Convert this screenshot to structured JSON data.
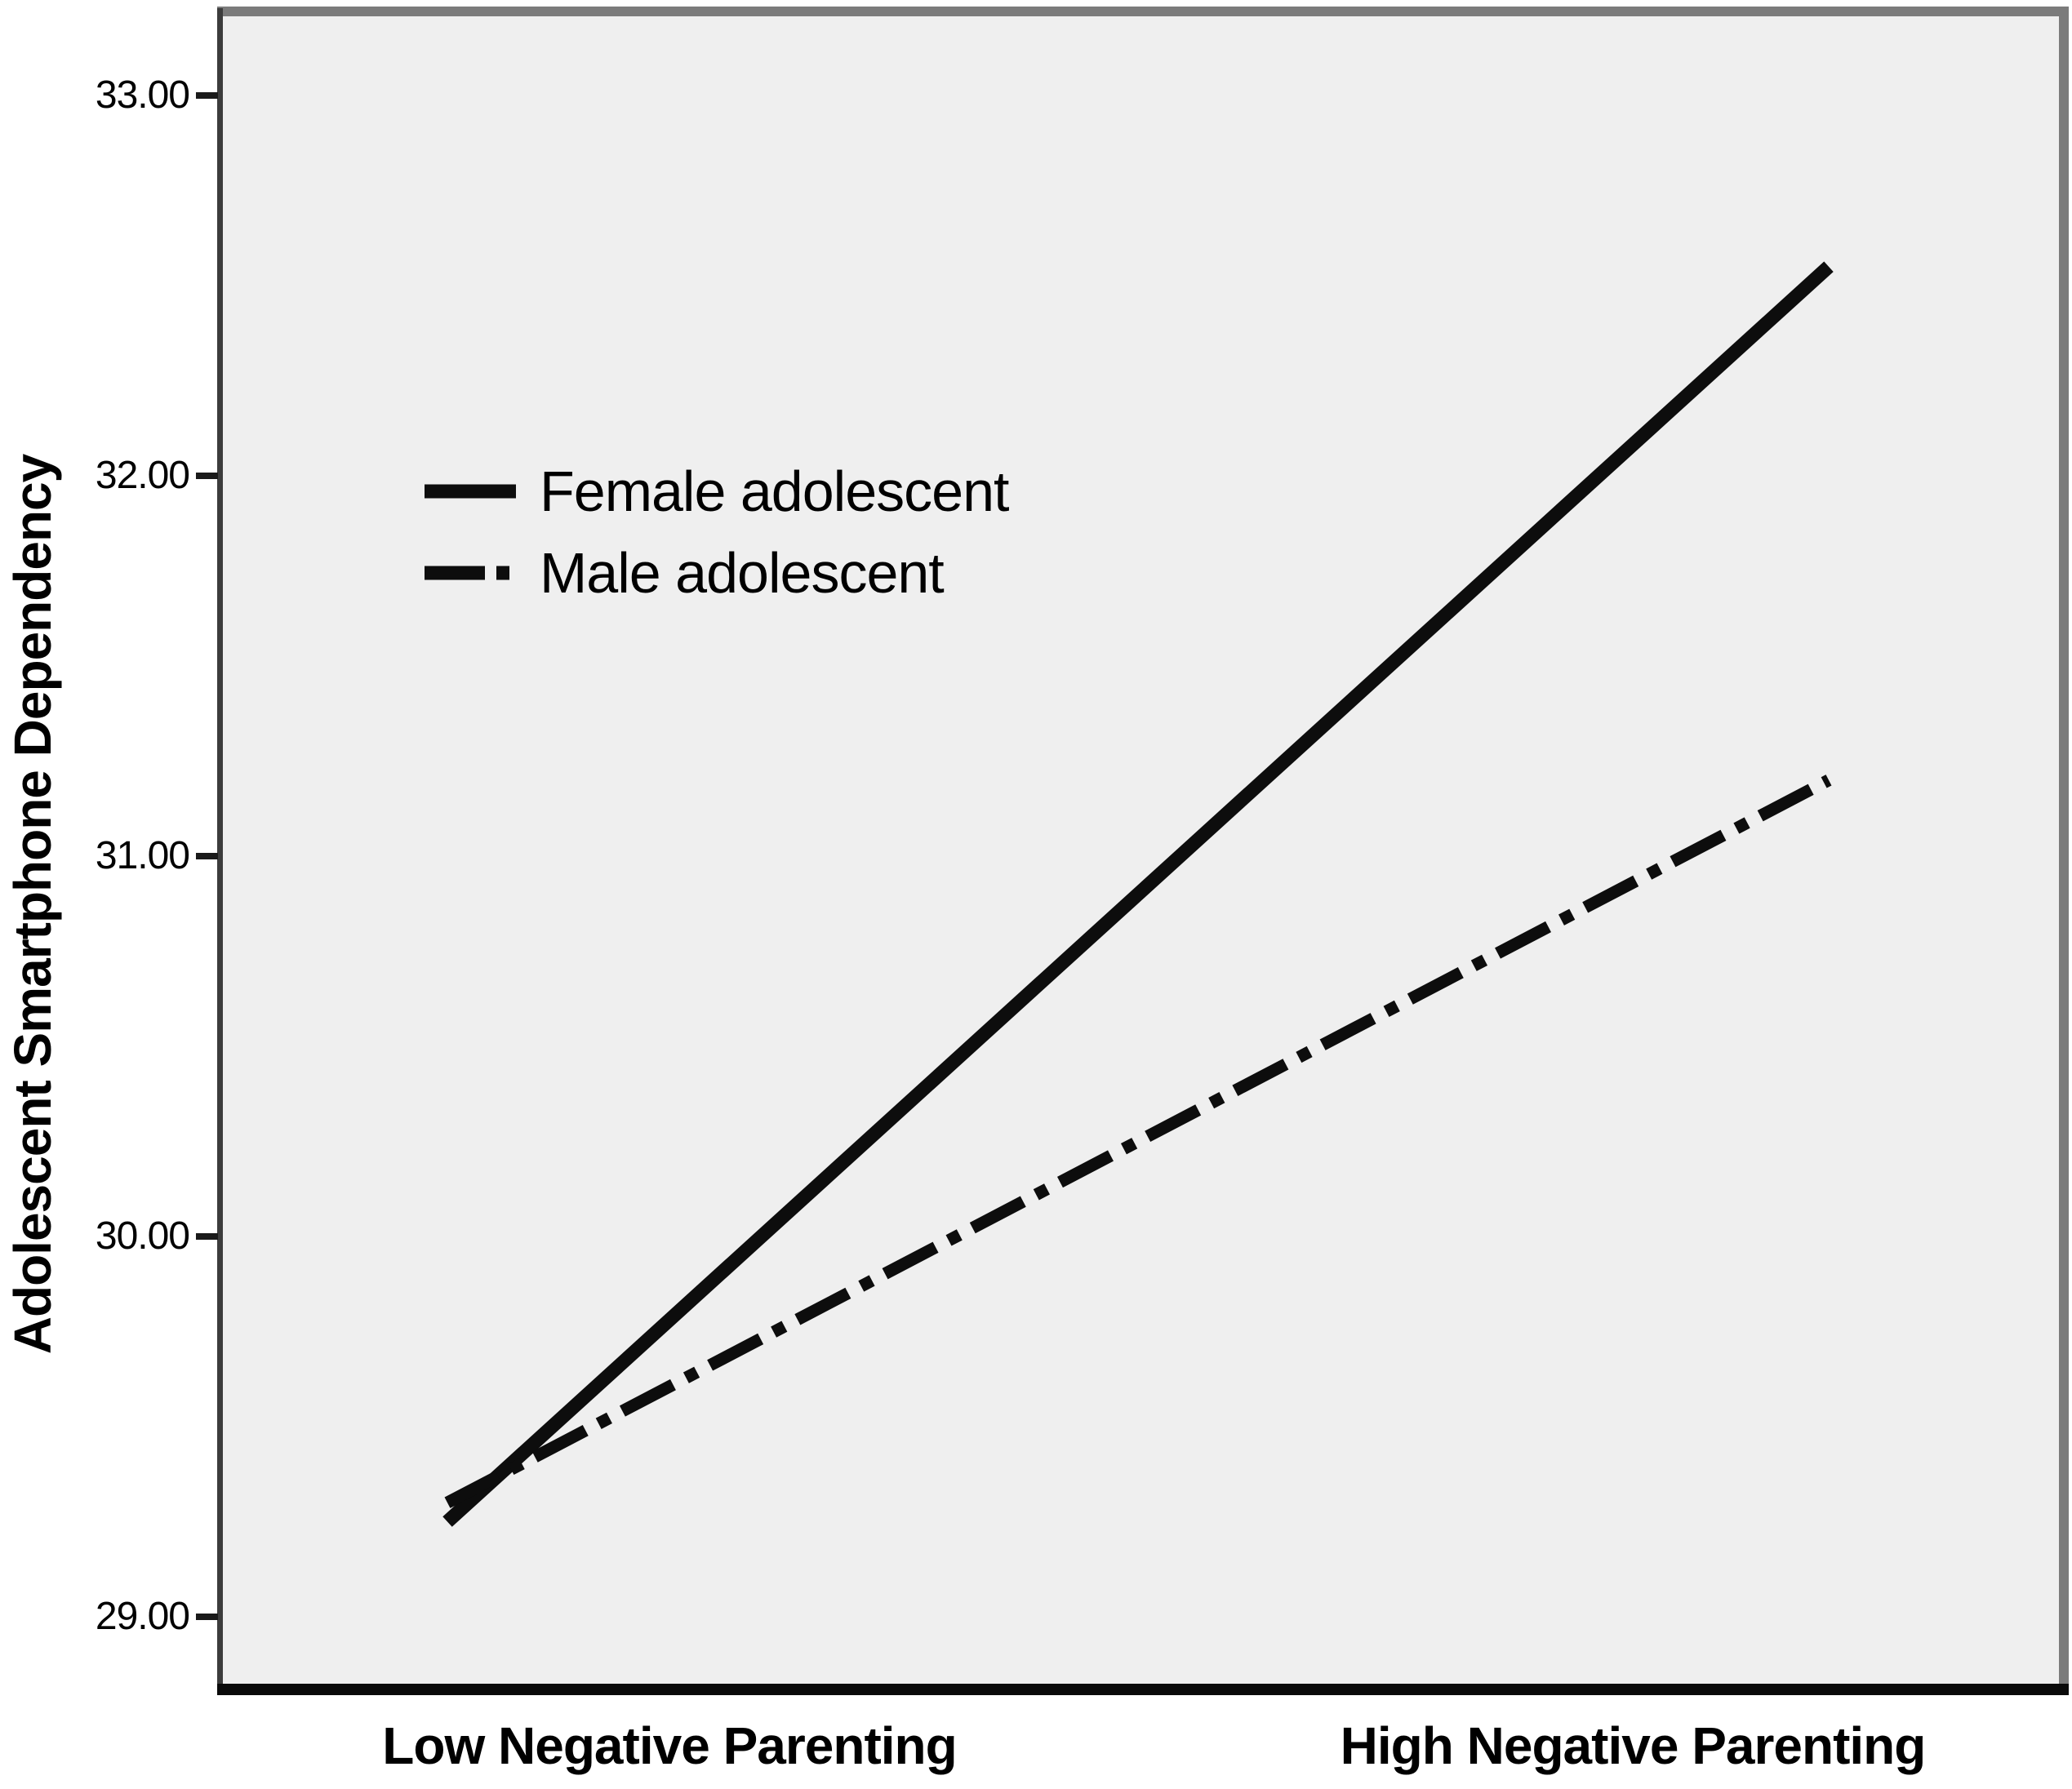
{
  "figure": {
    "y_axis_title": "Adolescent Smartphone Dependency",
    "legend": {
      "items": [
        {
          "label": "Female adolescent",
          "style": "solid"
        },
        {
          "label": "Male adolescent",
          "style": "dash-dot"
        }
      ]
    }
  },
  "chart_data": {
    "type": "line",
    "categories": [
      "Low Negative Parenting",
      "High Negative Parenting"
    ],
    "series": [
      {
        "name": "Female adolescent",
        "line_style": "solid",
        "values": [
          29.25,
          32.55
        ]
      },
      {
        "name": "Male adolescent",
        "line_style": "dash-dot",
        "values": [
          29.3,
          31.2
        ]
      }
    ],
    "title": "",
    "xlabel": "",
    "ylabel": "Adolescent Smartphone Dependency",
    "ylim": [
      28.8,
      33.25
    ],
    "yticks": {
      "values": [
        33,
        32,
        31,
        30,
        29
      ],
      "labels": [
        "33.00",
        "32.00",
        "31.00",
        "30.00",
        "29.00"
      ]
    },
    "grid": false,
    "legend_position": "upper-left-inside",
    "line_color": "#0d0d0d",
    "plot_background": "#efefef",
    "frame_colors": {
      "top": "#7b7b7b",
      "right": "#7b7b7b",
      "left": "#3c3c3c",
      "bottom": "#0a0a0a"
    }
  }
}
